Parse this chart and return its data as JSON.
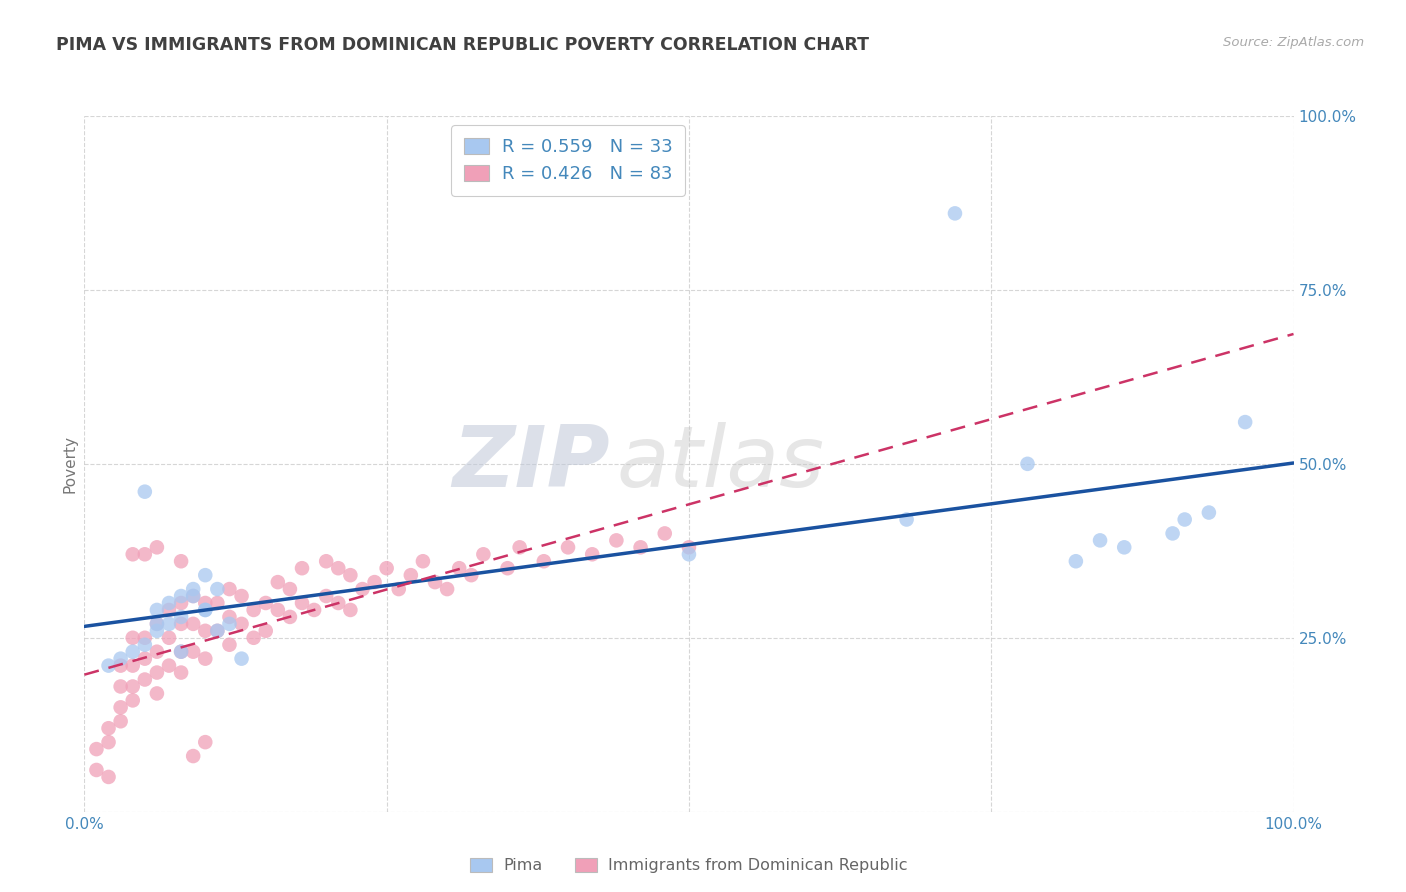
{
  "title": "PIMA VS IMMIGRANTS FROM DOMINICAN REPUBLIC POVERTY CORRELATION CHART",
  "source": "Source: ZipAtlas.com",
  "ylabel": "Poverty",
  "xlim": [
    0,
    1.0
  ],
  "ylim": [
    0,
    1.0
  ],
  "xticks": [
    0.0,
    0.25,
    0.5,
    0.75,
    1.0
  ],
  "xticklabels": [
    "0.0%",
    "",
    "",
    "",
    "100.0%"
  ],
  "yticks": [
    0.0,
    0.25,
    0.5,
    0.75,
    1.0
  ],
  "yticklabels": [
    "",
    "25.0%",
    "50.0%",
    "75.0%",
    "100.0%"
  ],
  "legend_label1": "Pima",
  "legend_label2": "Immigrants from Dominican Republic",
  "r1": 0.559,
  "n1": 33,
  "r2": 0.426,
  "n2": 83,
  "color1": "#a8c8f0",
  "color2": "#f0a0b8",
  "line_color1": "#1a52a0",
  "line_color2": "#cc3366",
  "title_color": "#404040",
  "axis_color": "#4488bb",
  "watermark_color1": "#c0c8d8",
  "watermark_color2": "#c8c8c8",
  "background_color": "#ffffff",
  "grid_color": "#cccccc",
  "pima_x": [
    0.02,
    0.03,
    0.04,
    0.05,
    0.06,
    0.06,
    0.07,
    0.08,
    0.08,
    0.09,
    0.1,
    0.1,
    0.11,
    0.12,
    0.13,
    0.05,
    0.06,
    0.07,
    0.08,
    0.09,
    0.1,
    0.11,
    0.5,
    0.68,
    0.72,
    0.78,
    0.82,
    0.84,
    0.86,
    0.9,
    0.91,
    0.93,
    0.96
  ],
  "pima_y": [
    0.21,
    0.22,
    0.23,
    0.46,
    0.29,
    0.27,
    0.3,
    0.31,
    0.28,
    0.32,
    0.29,
    0.34,
    0.32,
    0.27,
    0.22,
    0.24,
    0.26,
    0.27,
    0.23,
    0.31,
    0.29,
    0.26,
    0.37,
    0.42,
    0.86,
    0.5,
    0.36,
    0.39,
    0.38,
    0.4,
    0.42,
    0.43,
    0.56
  ],
  "dr_x": [
    0.01,
    0.01,
    0.02,
    0.02,
    0.02,
    0.03,
    0.03,
    0.03,
    0.03,
    0.04,
    0.04,
    0.04,
    0.04,
    0.05,
    0.05,
    0.05,
    0.06,
    0.06,
    0.06,
    0.06,
    0.07,
    0.07,
    0.07,
    0.08,
    0.08,
    0.08,
    0.08,
    0.09,
    0.09,
    0.09,
    0.1,
    0.1,
    0.1,
    0.11,
    0.11,
    0.12,
    0.12,
    0.12,
    0.13,
    0.13,
    0.14,
    0.14,
    0.15,
    0.15,
    0.16,
    0.16,
    0.17,
    0.17,
    0.18,
    0.18,
    0.19,
    0.2,
    0.2,
    0.21,
    0.21,
    0.22,
    0.22,
    0.23,
    0.24,
    0.25,
    0.26,
    0.27,
    0.28,
    0.29,
    0.3,
    0.31,
    0.32,
    0.33,
    0.35,
    0.36,
    0.38,
    0.4,
    0.42,
    0.44,
    0.46,
    0.48,
    0.5,
    0.04,
    0.05,
    0.06,
    0.08,
    0.09,
    0.1
  ],
  "dr_y": [
    0.06,
    0.09,
    0.1,
    0.12,
    0.05,
    0.13,
    0.15,
    0.18,
    0.21,
    0.16,
    0.18,
    0.21,
    0.25,
    0.19,
    0.22,
    0.25,
    0.17,
    0.2,
    0.23,
    0.27,
    0.21,
    0.25,
    0.29,
    0.2,
    0.23,
    0.27,
    0.3,
    0.23,
    0.27,
    0.31,
    0.22,
    0.26,
    0.3,
    0.26,
    0.3,
    0.24,
    0.28,
    0.32,
    0.27,
    0.31,
    0.25,
    0.29,
    0.26,
    0.3,
    0.29,
    0.33,
    0.28,
    0.32,
    0.3,
    0.35,
    0.29,
    0.31,
    0.36,
    0.3,
    0.35,
    0.29,
    0.34,
    0.32,
    0.33,
    0.35,
    0.32,
    0.34,
    0.36,
    0.33,
    0.32,
    0.35,
    0.34,
    0.37,
    0.35,
    0.38,
    0.36,
    0.38,
    0.37,
    0.39,
    0.38,
    0.4,
    0.38,
    0.37,
    0.37,
    0.38,
    0.36,
    0.08,
    0.1
  ]
}
